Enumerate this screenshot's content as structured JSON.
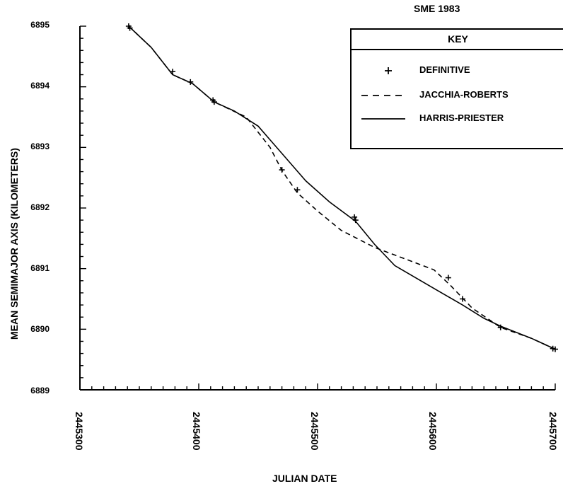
{
  "chart_data": {
    "type": "line",
    "title": "SME 1983",
    "xlabel": "JULIAN DATE",
    "ylabel": "MEAN SEMIMAJOR AXIS (KILOMETERS)",
    "xlim": [
      2445300,
      2445700
    ],
    "ylim": [
      6889,
      6895
    ],
    "x_ticks": [
      "2445300",
      "2445400",
      "2445500",
      "2445600",
      "2445700"
    ],
    "y_ticks": [
      "6889",
      "6890",
      "6891",
      "6892",
      "6893",
      "6894",
      "6895"
    ],
    "legend_title": "KEY",
    "legend_position": "top-right",
    "series": [
      {
        "name": "DEFINITIVE",
        "style": "plus",
        "points": [
          [
            2445341,
            6895.0
          ],
          [
            2445342,
            6894.97
          ],
          [
            2445378,
            6894.25
          ],
          [
            2445393,
            6894.08
          ],
          [
            2445412,
            6893.78
          ],
          [
            2445413,
            6893.75
          ],
          [
            2445470,
            6892.63
          ],
          [
            2445483,
            6892.3
          ],
          [
            2445531,
            6891.85
          ],
          [
            2445532,
            6891.8
          ],
          [
            2445610,
            6890.85
          ],
          [
            2445622,
            6890.5
          ],
          [
            2445654,
            6890.03
          ],
          [
            2445698,
            6889.68
          ],
          [
            2445700,
            6889.67
          ]
        ]
      },
      {
        "name": "JACCHIA-ROBERTS",
        "style": "dashed",
        "points": [
          [
            2445341,
            6895.0
          ],
          [
            2445360,
            6894.65
          ],
          [
            2445378,
            6894.2
          ],
          [
            2445395,
            6894.05
          ],
          [
            2445413,
            6893.75
          ],
          [
            2445440,
            6893.5
          ],
          [
            2445460,
            6893.0
          ],
          [
            2445470,
            6892.62
          ],
          [
            2445483,
            6892.25
          ],
          [
            2445500,
            6891.95
          ],
          [
            2445520,
            6891.63
          ],
          [
            2445548,
            6891.35
          ],
          [
            2445575,
            6891.15
          ],
          [
            2445598,
            6890.98
          ],
          [
            2445612,
            6890.72
          ],
          [
            2445630,
            6890.35
          ],
          [
            2445654,
            6890.03
          ],
          [
            2445680,
            6889.85
          ],
          [
            2445700,
            6889.67
          ]
        ]
      },
      {
        "name": "HARRIS-PRIESTER",
        "style": "solid",
        "points": [
          [
            2445341,
            6895.0
          ],
          [
            2445360,
            6894.65
          ],
          [
            2445378,
            6894.2
          ],
          [
            2445395,
            6894.05
          ],
          [
            2445413,
            6893.75
          ],
          [
            2445430,
            6893.6
          ],
          [
            2445450,
            6893.35
          ],
          [
            2445470,
            6892.9
          ],
          [
            2445490,
            6892.45
          ],
          [
            2445510,
            6892.1
          ],
          [
            2445532,
            6891.78
          ],
          [
            2445548,
            6891.4
          ],
          [
            2445565,
            6891.05
          ],
          [
            2445600,
            6890.65
          ],
          [
            2445622,
            6890.4
          ],
          [
            2445640,
            6890.18
          ],
          [
            2445654,
            6890.05
          ],
          [
            2445680,
            6889.85
          ],
          [
            2445700,
            6889.67
          ]
        ]
      }
    ]
  }
}
